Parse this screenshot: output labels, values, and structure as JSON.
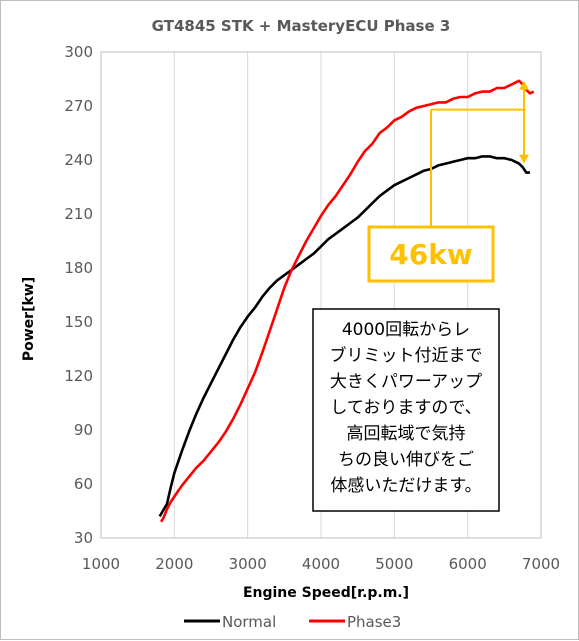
{
  "chart_data": {
    "type": "line",
    "title": "GT4845 STK + MasteryECU Phase 3",
    "xlabel": "Engine Speed[r.p.m.]",
    "ylabel": "Power[kw]",
    "xlim": [
      1000,
      7000
    ],
    "ylim": [
      30,
      300
    ],
    "xticks": [
      "1000",
      "2000",
      "3000",
      "4000",
      "5000",
      "6000",
      "7000"
    ],
    "yticks": [
      "30",
      "60",
      "90",
      "120",
      "150",
      "180",
      "210",
      "240",
      "270",
      "300"
    ],
    "grid": "vertical",
    "legend": "bottom",
    "series": [
      {
        "name": "Normal",
        "color": "#000000",
        "x": [
          1800,
          1900,
          1950,
          2000,
          2100,
          2200,
          2300,
          2400,
          2500,
          2600,
          2700,
          2800,
          2900,
          3000,
          3100,
          3200,
          3300,
          3400,
          3500,
          3600,
          3700,
          3800,
          3900,
          4000,
          4100,
          4200,
          4300,
          4400,
          4500,
          4600,
          4700,
          4800,
          4900,
          5000,
          5100,
          5200,
          5300,
          5400,
          5500,
          5600,
          5700,
          5800,
          5900,
          6000,
          6100,
          6200,
          6300,
          6400,
          6500,
          6600,
          6700,
          6750,
          6800,
          6850
        ],
        "y": [
          42,
          49,
          58,
          66,
          78,
          89,
          99,
          108,
          116,
          124,
          132,
          140,
          147,
          153,
          158,
          164,
          169,
          173,
          176,
          179,
          182,
          185,
          188,
          192,
          196,
          199,
          202,
          205,
          208,
          212,
          216,
          220,
          223,
          226,
          228,
          230,
          232,
          234,
          235,
          237,
          238,
          239,
          240,
          241,
          241,
          242,
          242,
          241,
          241,
          240,
          238,
          236,
          233,
          233
        ]
      },
      {
        "name": "Phase3",
        "color": "#ff0000",
        "x": [
          1820,
          1850,
          1900,
          1950,
          2000,
          2100,
          2200,
          2300,
          2400,
          2500,
          2600,
          2700,
          2800,
          2900,
          3000,
          3100,
          3200,
          3300,
          3400,
          3500,
          3600,
          3700,
          3800,
          3900,
          4000,
          4100,
          4200,
          4300,
          4400,
          4500,
          4600,
          4700,
          4800,
          4900,
          5000,
          5100,
          5200,
          5300,
          5400,
          5500,
          5600,
          5700,
          5800,
          5900,
          6000,
          6100,
          6200,
          6300,
          6400,
          6500,
          6600,
          6700,
          6750,
          6800,
          6850,
          6900
        ],
        "y": [
          39,
          41,
          46,
          50,
          53,
          59,
          64,
          69,
          73,
          78,
          83,
          89,
          96,
          104,
          113,
          122,
          133,
          145,
          157,
          169,
          179,
          187,
          195,
          202,
          209,
          215,
          220,
          226,
          232,
          239,
          245,
          249,
          255,
          258,
          262,
          264,
          267,
          269,
          270,
          271,
          272,
          272,
          274,
          275,
          275,
          277,
          278,
          278,
          280,
          280,
          282,
          284,
          282,
          279,
          277,
          278
        ]
      }
    ],
    "annotations": {
      "diff_label": "46kw",
      "diff_from": 238,
      "diff_to": 284,
      "diff_x": 6700,
      "note_lines": [
        "4000回転からレ",
        "ブリミット付近まで",
        "大きくパワーアップ",
        "しておりますので、",
        "高回転域で気持",
        "ちの良い伸びをご",
        "体感いただけます。"
      ]
    }
  }
}
